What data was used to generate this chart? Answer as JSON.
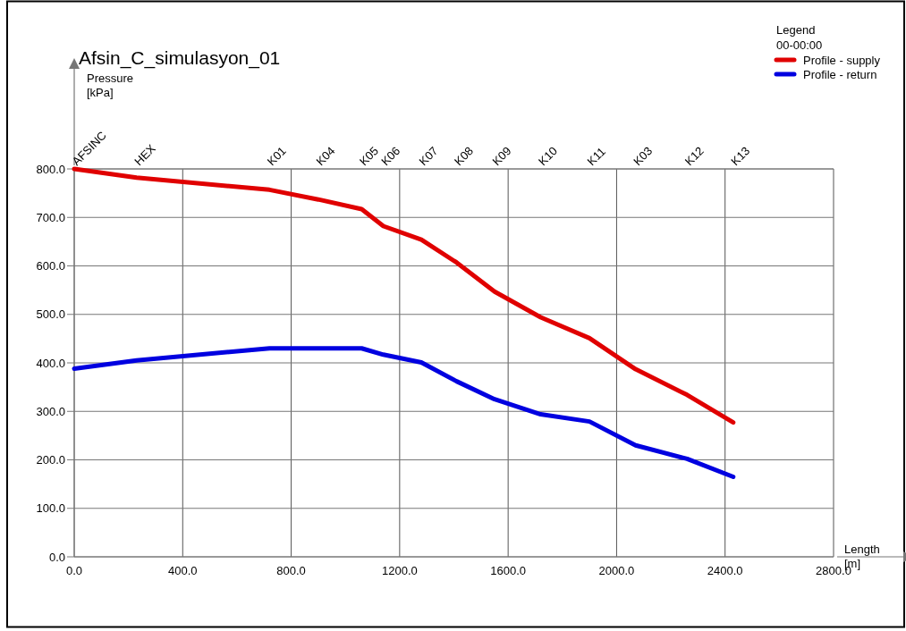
{
  "chart_data": {
    "type": "line",
    "title": "Afsin_C_simulasyon_01",
    "xlabel": "Length\n[m]",
    "legend_title": "Legend",
    "annotations": [
      "Pressure\n[kPa]",
      "00-00:00",
      "AFSINC",
      "HEX",
      "K01",
      "K04",
      "K05",
      "K06",
      "K07",
      "K08",
      "K09",
      "K10",
      "K11",
      "K03",
      "K12",
      "K13"
    ],
    "x": [
      0,
      230,
      720,
      900,
      1060,
      1140,
      1280,
      1410,
      1550,
      1720,
      1900,
      2070,
      2260,
      2430
    ],
    "series": [
      {
        "name": "Profile - supply",
        "color": "#e00000",
        "values": [
          800,
          782,
          757,
          737,
          717,
          682,
          654,
          607,
          547,
          494,
          451,
          387,
          334,
          277
        ]
      },
      {
        "name": "Profile - return",
        "color": "#0000e0",
        "values": [
          388,
          405,
          430,
          430,
          430,
          417,
          401,
          362,
          325,
          294,
          279,
          230,
          202,
          165
        ]
      }
    ],
    "xlim": [
      0,
      2800
    ],
    "ylim": [
      0,
      800
    ],
    "xticks": [
      {
        "value": 0,
        "label": "0.0"
      },
      {
        "value": 400,
        "label": "400.0"
      },
      {
        "value": 800,
        "label": "800.0"
      },
      {
        "value": 1200,
        "label": "1200.0"
      },
      {
        "value": 1600,
        "label": "1600.0"
      },
      {
        "value": 2000,
        "label": "2000.0"
      },
      {
        "value": 2400,
        "label": "2400.0"
      },
      {
        "value": 2800,
        "label": "2800.0"
      }
    ],
    "yticks": [
      {
        "value": 0,
        "label": "0.0"
      },
      {
        "value": 100,
        "label": "100.0"
      },
      {
        "value": 200,
        "label": "200.0"
      },
      {
        "value": 300,
        "label": "300.0"
      },
      {
        "value": 400,
        "label": "400.0"
      },
      {
        "value": 500,
        "label": "500.0"
      },
      {
        "value": 600,
        "label": "600.0"
      },
      {
        "value": 700,
        "label": "700.0"
      },
      {
        "value": 800,
        "label": "800.0"
      }
    ],
    "grid": true,
    "legend": "top right",
    "marker": "none",
    "line_style": "solid"
  }
}
